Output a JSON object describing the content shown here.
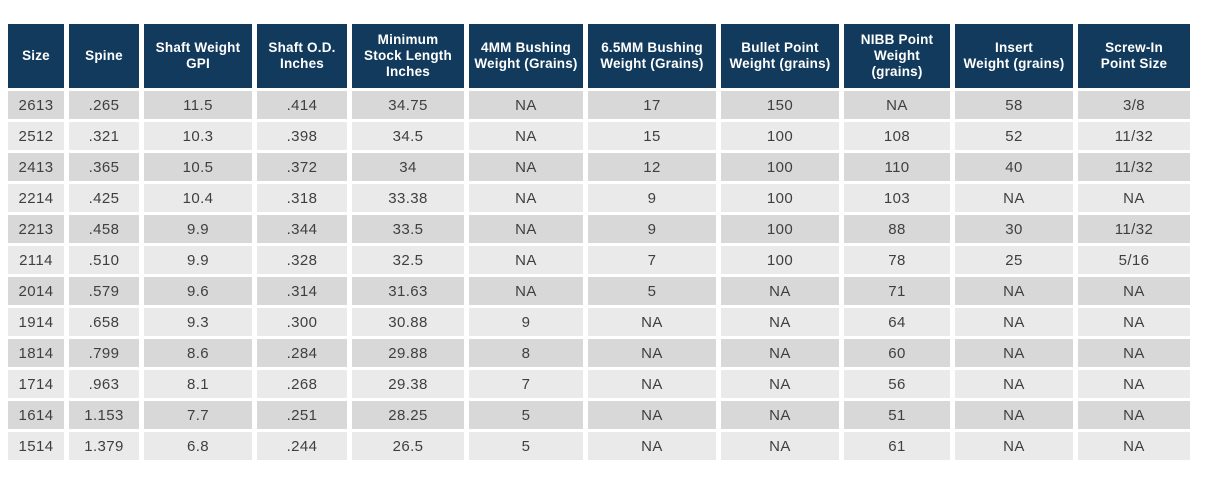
{
  "colors": {
    "header_bg": "#123A5C",
    "header_text": "#FFFFFF",
    "row_odd_bg": "#D8D8D8",
    "row_even_bg": "#EAEAEA",
    "cell_text": "#3F3F3F",
    "page_bg": "#FFFFFF"
  },
  "chart_data": {
    "type": "table",
    "title": "",
    "columns": [
      {
        "id": "size",
        "label": "Size"
      },
      {
        "id": "spine",
        "label": "Spine"
      },
      {
        "id": "shaft-weight-gpi",
        "label": "Shaft Weight\nGPI"
      },
      {
        "id": "shaft-od-inches",
        "label": "Shaft O.D.\nInches"
      },
      {
        "id": "min-stock-length",
        "label": "Minimum\nStock Length\nInches"
      },
      {
        "id": "bushing-4mm",
        "label": "4MM Bushing\nWeight (Grains)"
      },
      {
        "id": "bushing-6-5mm",
        "label": "6.5MM Bushing\nWeight (Grains)"
      },
      {
        "id": "bullet-point",
        "label": "Bullet Point\nWeight (grains)"
      },
      {
        "id": "nibb-point",
        "label": "NIBB Point\nWeight (grains)"
      },
      {
        "id": "insert",
        "label": "Insert\nWeight (grains)"
      },
      {
        "id": "screw-in-point",
        "label": "Screw-In\nPoint Size"
      }
    ],
    "rows": [
      [
        "2613",
        ".265",
        "11.5",
        ".414",
        "34.75",
        "NA",
        "17",
        "150",
        "NA",
        "58",
        "3/8"
      ],
      [
        "2512",
        ".321",
        "10.3",
        ".398",
        "34.5",
        "NA",
        "15",
        "100",
        "108",
        "52",
        "11/32"
      ],
      [
        "2413",
        ".365",
        "10.5",
        ".372",
        "34",
        "NA",
        "12",
        "100",
        "110",
        "40",
        "11/32"
      ],
      [
        "2214",
        ".425",
        "10.4",
        ".318",
        "33.38",
        "NA",
        "9",
        "100",
        "103",
        "NA",
        "NA"
      ],
      [
        "2213",
        ".458",
        "9.9",
        ".344",
        "33.5",
        "NA",
        "9",
        "100",
        "88",
        "30",
        "11/32"
      ],
      [
        "2114",
        ".510",
        "9.9",
        ".328",
        "32.5",
        "NA",
        "7",
        "100",
        "78",
        "25",
        "5/16"
      ],
      [
        "2014",
        ".579",
        "9.6",
        ".314",
        "31.63",
        "NA",
        "5",
        "NA",
        "71",
        "NA",
        "NA"
      ],
      [
        "1914",
        ".658",
        "9.3",
        ".300",
        "30.88",
        "9",
        "NA",
        "NA",
        "64",
        "NA",
        "NA"
      ],
      [
        "1814",
        ".799",
        "8.6",
        ".284",
        "29.88",
        "8",
        "NA",
        "NA",
        "60",
        "NA",
        "NA"
      ],
      [
        "1714",
        ".963",
        "8.1",
        ".268",
        "29.38",
        "7",
        "NA",
        "NA",
        "56",
        "NA",
        "NA"
      ],
      [
        "1614",
        "1.153",
        "7.7",
        ".251",
        "28.25",
        "5",
        "NA",
        "NA",
        "51",
        "NA",
        "NA"
      ],
      [
        "1514",
        "1.379",
        "6.8",
        ".244",
        "26.5",
        "5",
        "NA",
        "NA",
        "61",
        "NA",
        "NA"
      ]
    ]
  }
}
